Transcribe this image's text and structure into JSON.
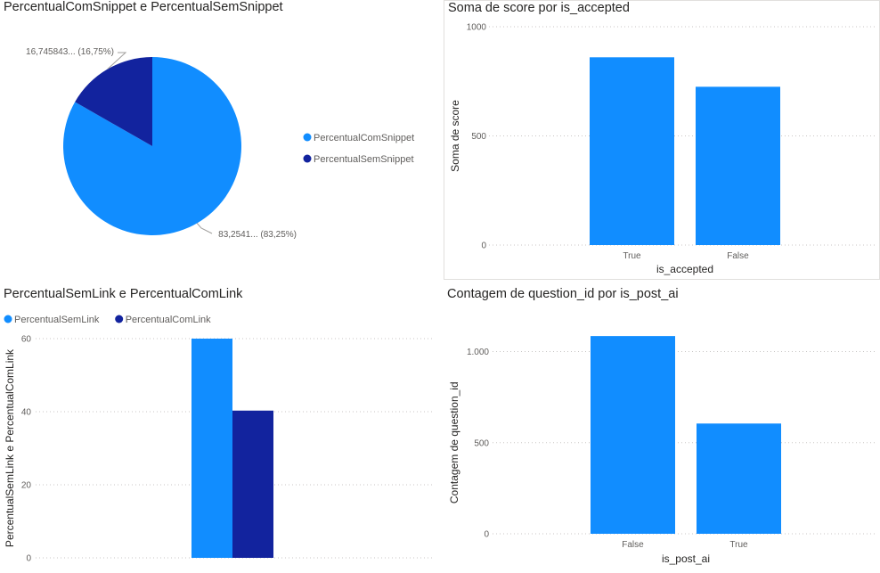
{
  "chart_data": [
    {
      "type": "pie",
      "title": "PercentualComSnippet e PercentualSemSnippet",
      "series": [
        {
          "name": "PercentualComSnippet",
          "value": 83.2541,
          "label": "83,2541... (83,25%)",
          "color": "#118dff"
        },
        {
          "name": "PercentualSemSnippet",
          "value": 16.745843,
          "label": "16,745843... (16,75%)",
          "color": "#12239e"
        }
      ],
      "legend": "right"
    },
    {
      "type": "bar",
      "title": "Soma de score por is_accepted",
      "categories": [
        "True",
        "False"
      ],
      "values": [
        860,
        725
      ],
      "xlabel": "is_accepted",
      "ylabel": "Soma de score",
      "ylim": [
        0,
        1000
      ],
      "yticks": [
        {
          "value": 0,
          "label": "0"
        },
        {
          "value": 500,
          "label": "500"
        },
        {
          "value": 1000,
          "label": "1000"
        }
      ],
      "color": "#118dff",
      "grid": true
    },
    {
      "type": "bar",
      "title": "PercentualSemLink e PercentualComLink",
      "categories": [
        ""
      ],
      "series": [
        {
          "name": "PercentualSemLink",
          "values": [
            60
          ],
          "color": "#118dff"
        },
        {
          "name": "PercentualComLink",
          "values": [
            40.3
          ],
          "color": "#12239e"
        }
      ],
      "ylabel": "PercentualSemLink e PercentualComLink",
      "ylim": [
        0,
        60
      ],
      "yticks": [
        {
          "value": 0,
          "label": "0"
        },
        {
          "value": 20,
          "label": "20"
        },
        {
          "value": 40,
          "label": "40"
        },
        {
          "value": 60,
          "label": "60"
        }
      ],
      "legend": "top-left",
      "grid": true
    },
    {
      "type": "bar",
      "title": "Contagem de question_id por is_post_ai",
      "categories": [
        "False",
        "True"
      ],
      "values": [
        1085,
        605
      ],
      "xlabel": "is_post_ai",
      "ylabel": "Contagem de question_id",
      "ylim": [
        0,
        1000
      ],
      "yticks": [
        {
          "value": 0,
          "label": "0"
        },
        {
          "value": 500,
          "label": "500"
        },
        {
          "value": 1000,
          "label": "1.000"
        }
      ],
      "color": "#118dff",
      "grid": true
    }
  ]
}
